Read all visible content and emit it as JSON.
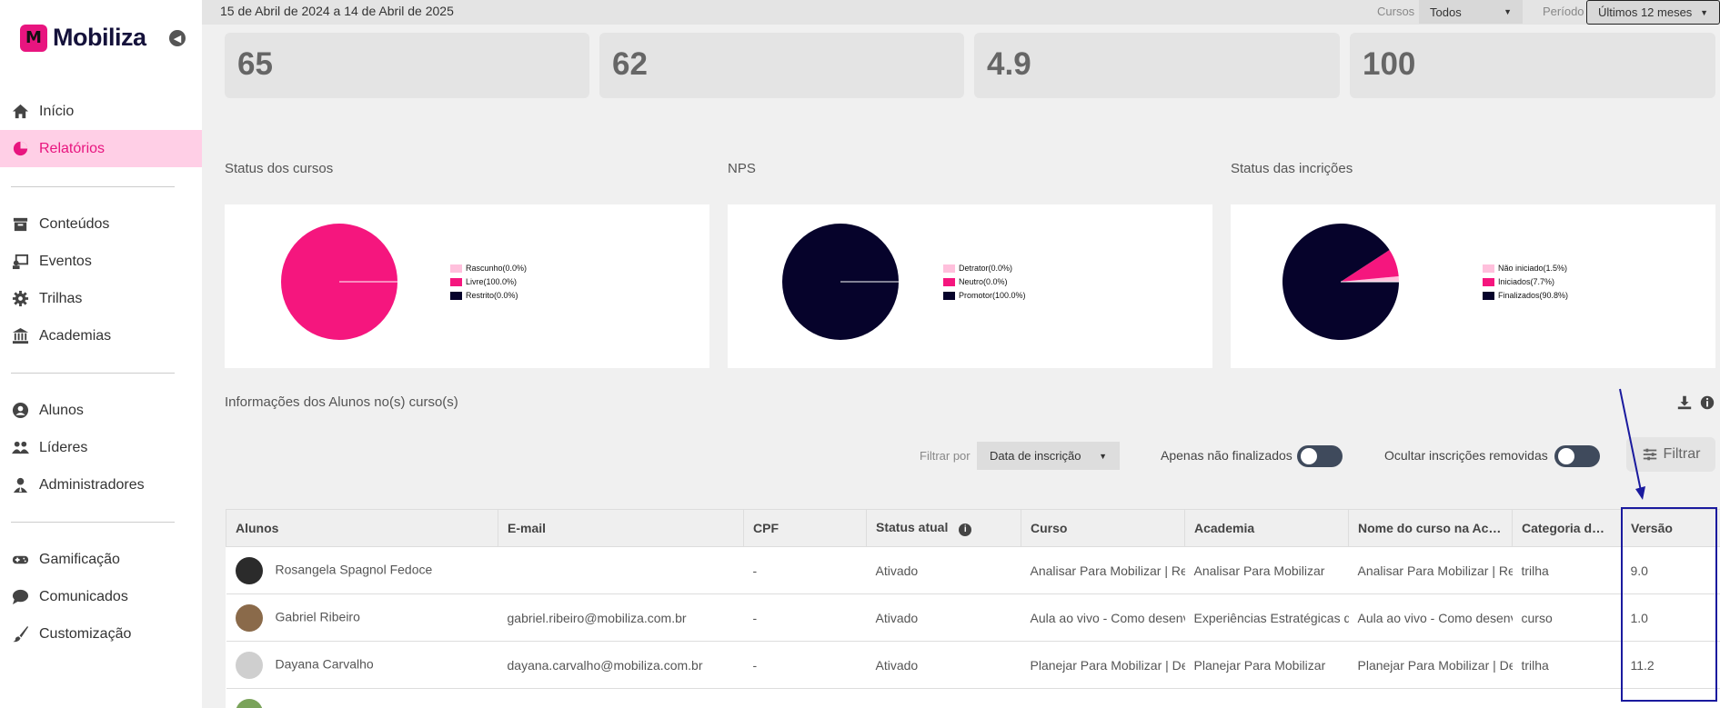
{
  "brand": {
    "name": "Mobiliza",
    "mark": "M"
  },
  "nav": {
    "group1": [
      {
        "label": "Início",
        "icon": "home-icon"
      },
      {
        "label": "Relatórios",
        "icon": "pie-chart-icon"
      }
    ],
    "group2": [
      {
        "label": "Conteúdos",
        "icon": "archive-icon"
      },
      {
        "label": "Eventos",
        "icon": "event-icon"
      },
      {
        "label": "Trilhas",
        "icon": "gear-icon"
      },
      {
        "label": "Academias",
        "icon": "bank-icon"
      }
    ],
    "group3": [
      {
        "label": "Alunos",
        "icon": "user-icon"
      },
      {
        "label": "Líderes",
        "icon": "users-icon"
      },
      {
        "label": "Administradores",
        "icon": "admin-icon"
      }
    ],
    "group4": [
      {
        "label": "Gamificação",
        "icon": "gamepad-icon"
      },
      {
        "label": "Comunicados",
        "icon": "chat-icon"
      },
      {
        "label": "Customização",
        "icon": "brush-icon"
      }
    ]
  },
  "topbar": {
    "date_range": "15 de Abril de 2024 a 14 de Abril de 2025",
    "cursos_label": "Cursos",
    "cursos_value": "Todos",
    "periodo_label": "Período",
    "periodo_value": "Últimos 12 meses"
  },
  "kpis": [
    "65",
    "62",
    "4.9",
    "100"
  ],
  "charts": {
    "status_cursos": {
      "title": "Status dos cursos"
    },
    "nps": {
      "title": "NPS"
    },
    "status_inscricoes": {
      "title": "Status das incrições"
    }
  },
  "chart_data": [
    {
      "type": "pie",
      "title": "Status dos cursos",
      "slices": [
        {
          "label": "Rascunho(0.0%)",
          "value": 0.0,
          "color": "#ffc0dc"
        },
        {
          "label": "Livre(100.0%)",
          "value": 100.0,
          "color": "#f5167e"
        },
        {
          "label": "Restrito(0.0%)",
          "value": 0.0,
          "color": "#06032b"
        }
      ]
    },
    {
      "type": "pie",
      "title": "NPS",
      "slices": [
        {
          "label": "Detrator(0.0%)",
          "value": 0.0,
          "color": "#ffc0dc"
        },
        {
          "label": "Neutro(0.0%)",
          "value": 0.0,
          "color": "#f5167e"
        },
        {
          "label": "Promotor(100.0%)",
          "value": 100.0,
          "color": "#06032b"
        }
      ]
    },
    {
      "type": "pie",
      "title": "Status das incrições",
      "slices": [
        {
          "label": "Não iniciado(1.5%)",
          "value": 1.5,
          "color": "#ffc0dc"
        },
        {
          "label": "Iniciados(7.7%)",
          "value": 7.7,
          "color": "#f5167e"
        },
        {
          "label": "Finalizados(90.8%)",
          "value": 90.8,
          "color": "#06032b"
        }
      ]
    }
  ],
  "students_section": {
    "title": "Informações dos Alunos no(s) curso(s)",
    "filter_by_label": "Filtrar por",
    "filter_by_value": "Data de inscrição",
    "toggle1_label": "Apenas não finalizados",
    "toggle2_label": "Ocultar inscrições removidas",
    "filter_button": "Filtrar"
  },
  "table": {
    "headers": [
      "Alunos",
      "E-mail",
      "CPF",
      "Status atual",
      "Curso",
      "Academia",
      "Nome do curso na Academia",
      "Categoria do curso",
      "Versão"
    ],
    "rows": [
      {
        "name": "Rosangela Spagnol Fedoce",
        "email": "",
        "cpf": "-",
        "status": "Ativado",
        "curso": "Analisar Para Mobilizar | Resultados",
        "academia": "Analisar Para Mobilizar",
        "nome_curso": "Analisar Para Mobilizar | Resultados",
        "categoria": "trilha",
        "versao": "9.0",
        "avatar_color": "#2b2b2b"
      },
      {
        "name": "Gabriel Ribeiro",
        "email": "gabriel.ribeiro@mobiliza.com.br",
        "cpf": "-",
        "status": "Ativado",
        "curso": "Aula ao vivo - Como desenvolver",
        "academia": "Experiências Estratégicas de",
        "nome_curso": "Aula ao vivo - Como desenvolver",
        "categoria": "curso",
        "versao": "1.0",
        "avatar_color": "#8a6a4a"
      },
      {
        "name": "Dayana Carvalho",
        "email": "dayana.carvalho@mobiliza.com.br",
        "cpf": "-",
        "status": "Ativado",
        "curso": "Planejar Para Mobilizar | Desenvolvimento",
        "academia": "Planejar Para Mobilizar",
        "nome_curso": "Planejar Para Mobilizar | Desenvolvimento",
        "categoria": "trilha",
        "versao": "11.2",
        "avatar_color": "#cfcfcf"
      }
    ]
  }
}
